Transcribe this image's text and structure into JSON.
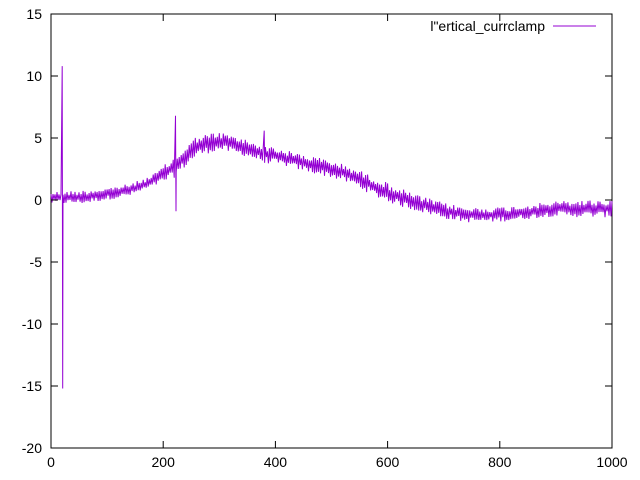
{
  "chart_data": {
    "type": "line",
    "title": "",
    "xlabel": "",
    "ylabel": "",
    "xlim": [
      0,
      1000
    ],
    "ylim": [
      -20,
      15
    ],
    "xticks": [
      0,
      200,
      400,
      600,
      800,
      1000
    ],
    "yticks": [
      -20,
      -15,
      -10,
      -5,
      0,
      5,
      10,
      15
    ],
    "xtick_labels": [
      "0",
      "200",
      "400",
      "600",
      "800",
      "1000"
    ],
    "ytick_labels": [
      "-20",
      "-15",
      "-10",
      "-5",
      "0",
      "5",
      "10",
      "15"
    ],
    "grid": false,
    "legend_position": "top-right",
    "series": [
      {
        "name": "l\"ertical_currclamp",
        "color": "#9400d3",
        "description_of_shape": "noisy oscillating trace",
        "envelope": {
          "x": [
            0,
            20,
            60,
            100,
            140,
            180,
            220,
            260,
            300,
            340,
            380,
            420,
            460,
            500,
            540,
            580,
            620,
            660,
            700,
            740,
            780,
            820,
            860,
            900,
            940,
            980,
            1000
          ],
          "low": [
            -0.3,
            -0.3,
            -0.3,
            0.0,
            0.3,
            1.0,
            1.8,
            3.5,
            4.0,
            3.6,
            3.0,
            2.7,
            2.2,
            1.8,
            1.2,
            0.2,
            -0.5,
            -1.0,
            -1.5,
            -1.8,
            -1.8,
            -1.7,
            -1.5,
            -1.3,
            -1.4,
            -1.4,
            -1.4
          ],
          "high": [
            0.7,
            0.7,
            0.8,
            1.0,
            1.3,
            2.0,
            3.5,
            5.2,
            5.5,
            5.0,
            4.5,
            4.0,
            3.6,
            3.2,
            2.6,
            1.8,
            1.0,
            0.3,
            -0.2,
            -0.6,
            -0.6,
            -0.5,
            -0.3,
            -0.1,
            0.0,
            0.0,
            0.0
          ]
        },
        "spikes": [
          {
            "x": 20,
            "y_min": -15.2,
            "y_max": 10.8
          },
          {
            "x": 222,
            "y_min": -0.9,
            "y_max": 6.8
          },
          {
            "x": 380,
            "y_min": 3.0,
            "y_max": 5.6
          }
        ]
      }
    ]
  }
}
